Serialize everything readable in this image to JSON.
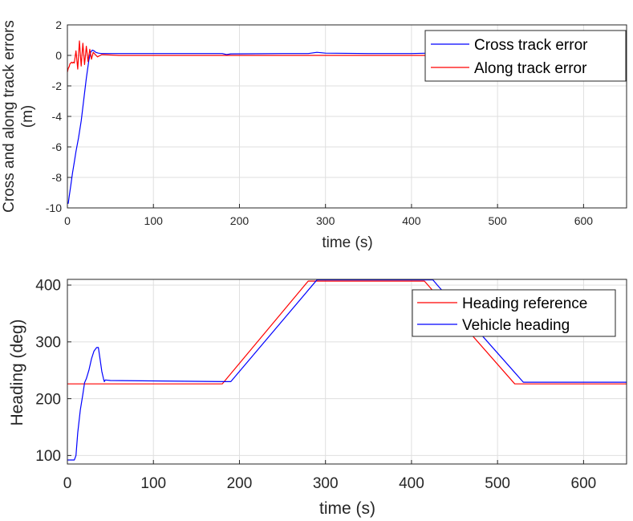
{
  "chart_data": [
    {
      "type": "line",
      "title": "",
      "xlabel": "time (s)",
      "ylabel_line1": "Cross and along track errors",
      "ylabel_line2": "(m)",
      "xlim": [
        0,
        650
      ],
      "ylim": [
        -10,
        2
      ],
      "xticks": [
        0,
        100,
        200,
        300,
        400,
        500,
        600
      ],
      "yticks": [
        2,
        0,
        -2,
        -4,
        -6,
        -8,
        -10
      ],
      "grid": true,
      "legend_position": "top-right",
      "series": [
        {
          "name": "Cross track error",
          "color": "#0000ff",
          "x": [
            0,
            1,
            2,
            4,
            6,
            8,
            10,
            13,
            16,
            19,
            22,
            25,
            27,
            29,
            31,
            33,
            36,
            40,
            50,
            100,
            180,
            185,
            190,
            250,
            280,
            290,
            300,
            350,
            400,
            420,
            425,
            430,
            500,
            600,
            650
          ],
          "y": [
            -9.7,
            -9.7,
            -9.3,
            -8.5,
            -7.7,
            -7.0,
            -6.3,
            -5.4,
            -4.3,
            -2.9,
            -1.5,
            -0.3,
            0.2,
            0.35,
            0.3,
            0.2,
            0.15,
            0.12,
            0.12,
            0.12,
            0.12,
            0.05,
            0.1,
            0.12,
            0.12,
            0.2,
            0.15,
            0.12,
            0.12,
            0.15,
            0.2,
            0.15,
            0.12,
            0.12,
            0.12
          ]
        },
        {
          "name": "Along track error",
          "color": "#ff0000",
          "x": [
            0,
            1,
            2,
            3,
            4,
            5,
            6,
            7,
            8,
            10,
            12,
            14,
            16,
            18,
            20,
            22,
            24,
            26,
            28,
            30,
            35,
            40,
            60,
            650
          ],
          "y": [
            -1.1,
            -0.85,
            -0.75,
            -0.55,
            -0.5,
            -0.45,
            -0.5,
            -0.45,
            -0.5,
            0.3,
            -0.9,
            0.95,
            -0.7,
            0.8,
            -0.6,
            0.6,
            -0.4,
            0.4,
            -0.25,
            0.2,
            -0.1,
            0.05,
            0.0,
            0.0
          ]
        }
      ]
    },
    {
      "type": "line",
      "title": "",
      "xlabel": "time (s)",
      "ylabel": "Heading (deg)",
      "xlim": [
        0,
        650
      ],
      "ylim": [
        85,
        410
      ],
      "xticks": [
        0,
        100,
        200,
        300,
        400,
        500,
        600
      ],
      "yticks": [
        400,
        300,
        200,
        100
      ],
      "grid": true,
      "legend_position": "top-right",
      "series": [
        {
          "name": "Heading reference",
          "color": "#ff0000",
          "x": [
            0,
            180,
            280,
            415,
            520,
            650
          ],
          "y": [
            226,
            226,
            407,
            407,
            226,
            226
          ]
        },
        {
          "name": "Vehicle heading",
          "color": "#0000ff",
          "x": [
            0,
            8,
            10,
            12,
            15,
            18,
            20,
            22,
            25,
            28,
            31,
            34,
            36,
            38,
            40,
            42,
            43,
            44,
            50,
            185,
            190,
            290,
            425,
            430,
            530,
            650
          ],
          "y": [
            92,
            92,
            100,
            140,
            180,
            208,
            228,
            235,
            250,
            270,
            284,
            290,
            290,
            270,
            248,
            235,
            230,
            233,
            232,
            230,
            230,
            409,
            409,
            400,
            229,
            229
          ]
        }
      ]
    }
  ]
}
